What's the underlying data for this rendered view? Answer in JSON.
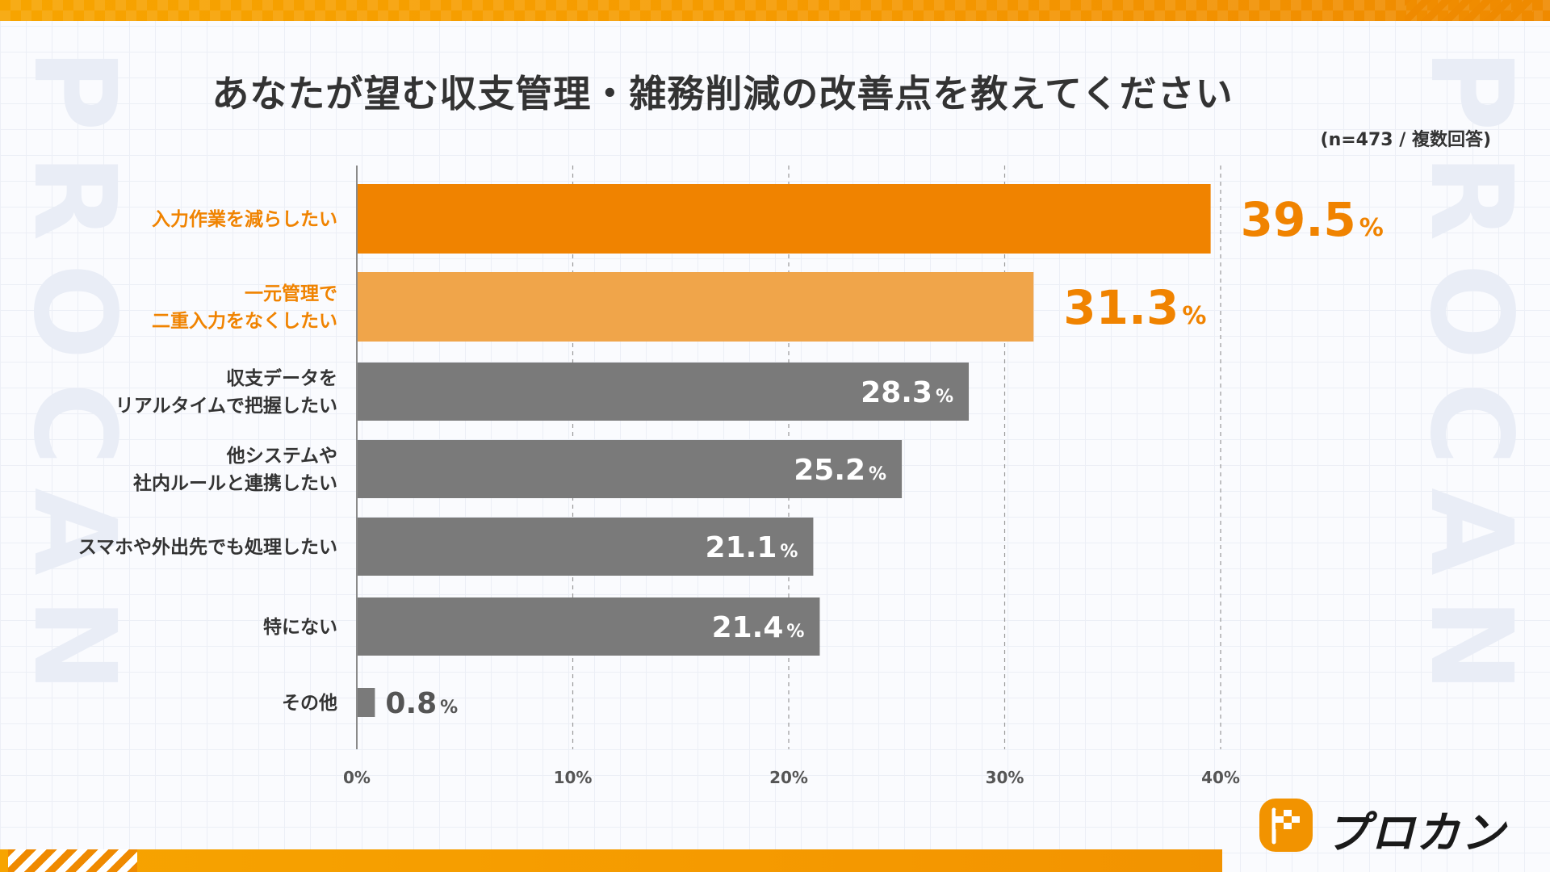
{
  "title": "あなたが望む収支管理・雑務削減の改善点を教えてください",
  "subtitle": "(n=473 / 複数回答)",
  "watermark": "PROCAN",
  "logo_text": "プロカン",
  "colors": {
    "highlight": "#f08300",
    "highlight_light": "#f0a54a",
    "bar_gray": "#7a7a7a",
    "label_gray": "#333333",
    "accent_band": "#f59a00"
  },
  "chart_data": {
    "type": "bar",
    "orientation": "horizontal",
    "categories": [
      [
        "入力作業を減らしたい"
      ],
      [
        "一元管理で",
        "二重入力をなくしたい"
      ],
      [
        "収支データを",
        "リアルタイムで把握したい"
      ],
      [
        "他システムや",
        "社内ルールと連携したい"
      ],
      [
        "スマホや外出先でも処理したい"
      ],
      [
        "特にない"
      ],
      [
        "その他"
      ]
    ],
    "values": [
      39.5,
      31.3,
      28.3,
      25.2,
      21.1,
      21.4,
      0.8
    ],
    "value_labels": [
      "39.5",
      "31.3",
      "28.3",
      "25.2",
      "21.1",
      "21.4",
      "0.8"
    ],
    "unit": "%",
    "xlim": [
      0,
      40
    ],
    "xticks": [
      0,
      10,
      20,
      30,
      40
    ],
    "xtick_labels": [
      "0%",
      "10%",
      "20%",
      "30%",
      "40%"
    ],
    "grid": true,
    "highlight": [
      "strong",
      "light",
      "none",
      "none",
      "none",
      "none",
      "none"
    ]
  }
}
